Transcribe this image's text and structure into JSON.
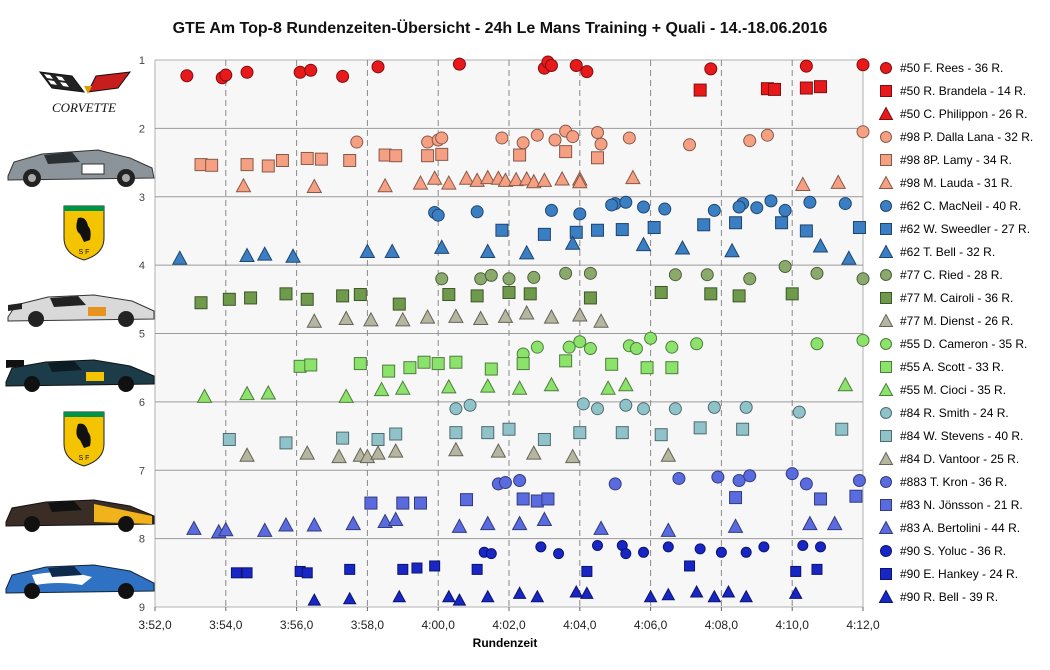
{
  "chart_data": {
    "type": "scatter",
    "title": "GTE Am  Top-8 Rundenzeiten-Übersicht  - 24h Le Mans  Training  + Quali  - 14.-18.06.2016",
    "xlabel": "Rundenzeit",
    "ylabel": "",
    "xlim": [
      "3:52,0",
      "4:12,0"
    ],
    "ylim": [
      1,
      9
    ],
    "x_ticks": [
      "3:52,0",
      "3:54,0",
      "3:56,0",
      "3:58,0",
      "4:00,0",
      "4:02,0",
      "4:04,0",
      "4:06,0",
      "4:08,0",
      "4:10,0",
      "4:12,0"
    ],
    "y_ticks": [
      "1",
      "2",
      "3",
      "4",
      "5",
      "6",
      "7",
      "8",
      "9"
    ],
    "grid": true,
    "legend_position": "right",
    "logo_text": "CORVETTE",
    "series": [
      {
        "name": "#50 F. Rees - 36 R.",
        "marker": "circle",
        "color": "#e8191b",
        "x": [
          "3:52,9",
          "3:53,9",
          "3:54,0",
          "3:54,6",
          "3:56,1",
          "3:56,4",
          "3:57,3",
          "3:58,3",
          "4:00,6",
          "4:03,0",
          "4:03,1",
          "4:03,2",
          "4:03,9",
          "4:04,2",
          "4:07,7",
          "4:10,4",
          "4:12,0"
        ],
        "y": [
          1.23,
          1.26,
          1.22,
          1.18,
          1.18,
          1.15,
          1.24,
          1.1,
          1.06,
          1.12,
          1.03,
          1.08,
          1.08,
          1.17,
          1.13,
          1.09,
          1.07
        ]
      },
      {
        "name": "#50 R. Brandela - 14 R.",
        "marker": "square",
        "color": "#e8191b",
        "x": [
          "4:07,4",
          "4:09,3",
          "4:09,5",
          "4:10,4",
          "4:10,8"
        ],
        "y": [
          1.44,
          1.42,
          1.43,
          1.41,
          1.39
        ]
      },
      {
        "name": "#50 C. Philippon - 26 R.",
        "marker": "triangle",
        "color": "#e8191b",
        "x": [],
        "y": []
      },
      {
        "name": "#98 P. Dalla Lana - 32 R.",
        "marker": "circle",
        "color": "#f6a083",
        "x": [
          "3:57,7",
          "3:59,7",
          "4:00,0",
          "4:00,1",
          "4:01,8",
          "4:02,4",
          "4:02,8",
          "4:03,3",
          "4:03,6",
          "4:03,8",
          "4:04,5",
          "4:04,6",
          "4:05,4",
          "4:07,1",
          "4:08,8",
          "4:09,3",
          "4:12,0"
        ],
        "y": [
          2.2,
          2.2,
          2.17,
          2.14,
          2.14,
          2.21,
          2.1,
          2.17,
          2.04,
          2.12,
          2.06,
          2.23,
          2.14,
          2.24,
          2.18,
          2.1,
          2.05
        ]
      },
      {
        "name": "#98 8P. Lamy - 34 R.",
        "marker": "square",
        "color": "#f6a083",
        "x": [
          "3:53,3",
          "3:53,6",
          "3:54,6",
          "3:55,2",
          "3:55,6",
          "3:56,3",
          "3:56,7",
          "3:57,5",
          "3:58,5",
          "3:58,8",
          "3:59,7",
          "4:00,1",
          "4:02,3",
          "4:03,6",
          "4:04,5"
        ],
        "y": [
          2.53,
          2.54,
          2.53,
          2.55,
          2.47,
          2.44,
          2.45,
          2.47,
          2.39,
          2.4,
          2.4,
          2.38,
          2.39,
          2.34,
          2.43
        ]
      },
      {
        "name": "#98 M. Lauda - 31 R.",
        "marker": "triangle",
        "color": "#f6a083",
        "x": [
          "3:54,5",
          "3:56,5",
          "3:58,5",
          "3:59,5",
          "3:59,9",
          "4:00,3",
          "4:00,8",
          "4:01,1",
          "4:01,4",
          "4:01,7",
          "4:01,9",
          "4:02,2",
          "4:02,5",
          "4:02,7",
          "4:03,0",
          "4:03,5",
          "4:04,0",
          "4:04,0",
          "4:05,5",
          "4:10,3",
          "4:11,3"
        ],
        "y": [
          2.84,
          2.85,
          2.84,
          2.8,
          2.73,
          2.8,
          2.73,
          2.76,
          2.72,
          2.73,
          2.76,
          2.75,
          2.74,
          2.78,
          2.76,
          2.74,
          2.74,
          2.78,
          2.72,
          2.82,
          2.79
        ]
      },
      {
        "name": "#62 C. MacNeil - 40 R.",
        "marker": "circle",
        "color": "#3a7ec4",
        "x": [
          "3:59,9",
          "4:00,0",
          "4:01,1",
          "4:05,0",
          "4:05,3",
          "4:05,8",
          "4:06,4",
          "4:08,6",
          "4:09,4",
          "4:09,8",
          "4:10,5",
          "4:11,5",
          "4:03,2",
          "4:04,0",
          "4:04,9",
          "4:07,8",
          "4:08,5",
          "4:09,0"
        ],
        "y": [
          3.23,
          3.27,
          3.22,
          3.1,
          3.08,
          3.15,
          3.18,
          3.1,
          3.06,
          3.2,
          3.08,
          3.1,
          3.2,
          3.25,
          3.12,
          3.2,
          3.15,
          3.16
        ]
      },
      {
        "name": "#62 W. Sweedler - 27 R.",
        "marker": "square",
        "color": "#3a7ec4",
        "x": [
          "4:01,8",
          "4:03,0",
          "4:03,9",
          "4:04,5",
          "4:05,2",
          "4:06,1",
          "4:07,5",
          "4:08,4",
          "4:09,7",
          "4:10,4",
          "4:11,9"
        ],
        "y": [
          3.49,
          3.55,
          3.52,
          3.49,
          3.48,
          3.45,
          3.41,
          3.38,
          3.38,
          3.5,
          3.45
        ]
      },
      {
        "name": "#62 T. Bell - 32 R.",
        "marker": "triangle",
        "color": "#3a7ec4",
        "x": [
          "3:52,7",
          "3:54,6",
          "3:55,1",
          "3:55,9",
          "3:58,0",
          "3:58,7",
          "4:00,1",
          "4:01,4",
          "4:02,5",
          "4:03,8",
          "4:05,8",
          "4:06,9",
          "4:08,3",
          "4:10,8",
          "4:11,6"
        ],
        "y": [
          3.9,
          3.86,
          3.84,
          3.87,
          3.8,
          3.8,
          3.74,
          3.8,
          3.82,
          3.68,
          3.7,
          3.75,
          3.79,
          3.72,
          3.9
        ]
      },
      {
        "name": "#77 C. Ried - 28 R.",
        "marker": "circle",
        "color": "#8aaa6c",
        "x": [
          "4:00,1",
          "4:01,2",
          "4:01,5",
          "4:02,0",
          "4:02,7",
          "4:03,6",
          "4:04,3",
          "4:06,7",
          "4:07,6",
          "4:08,8",
          "4:09,8",
          "4:10,7",
          "4:12,0"
        ],
        "y": [
          4.2,
          4.2,
          4.15,
          4.2,
          4.18,
          4.12,
          4.12,
          4.14,
          4.14,
          4.2,
          4.02,
          4.12,
          4.2
        ]
      },
      {
        "name": "#77 M. Cairoli - 36 R.",
        "marker": "square",
        "color": "#6f9a4b",
        "x": [
          "3:53,3",
          "3:54,1",
          "3:54,7",
          "3:55,7",
          "3:56,3",
          "3:57,3",
          "3:57,8",
          "3:58,9",
          "4:00,3",
          "4:01,1",
          "4:02,0",
          "4:02,6",
          "4:04,3",
          "4:06,3",
          "4:07,7",
          "4:08,5",
          "4:10,0"
        ],
        "y": [
          4.55,
          4.5,
          4.48,
          4.42,
          4.5,
          4.45,
          4.43,
          4.57,
          4.43,
          4.45,
          4.4,
          4.42,
          4.48,
          4.4,
          4.42,
          4.45,
          4.42
        ]
      },
      {
        "name": "#77 M. Dienst - 26 R.",
        "marker": "triangle",
        "color": "#b5b5a0",
        "x": [
          "3:56,5",
          "3:57,4",
          "3:58,1",
          "3:59,0",
          "3:59,7",
          "4:00,5",
          "4:01,2",
          "4:01,9",
          "4:02,5",
          "4:03,2",
          "4:04,0",
          "4:04,6"
        ],
        "y": [
          4.82,
          4.78,
          4.8,
          4.8,
          4.76,
          4.75,
          4.78,
          4.75,
          4.7,
          4.76,
          4.73,
          4.82
        ]
      },
      {
        "name": "#55 D. Cameron - 35 R.",
        "marker": "circle",
        "color": "#8ce36b",
        "x": [
          "4:02,8",
          "4:04,0",
          "4:04,3",
          "4:05,4",
          "4:05,6",
          "4:06,0",
          "4:06,6",
          "4:07,3",
          "4:10,7",
          "4:12,0",
          "4:02,4",
          "4:03,7"
        ],
        "y": [
          5.2,
          5.12,
          5.22,
          5.18,
          5.22,
          5.07,
          5.2,
          5.15,
          5.15,
          5.1,
          5.3,
          5.2
        ]
      },
      {
        "name": "#55 A. Scott - 33 R.",
        "marker": "square",
        "color": "#8ce36b",
        "x": [
          "3:56,1",
          "3:56,4",
          "3:57,8",
          "3:58,6",
          "3:59,2",
          "3:59,6",
          "4:00,0",
          "4:00,5",
          "4:01,5",
          "4:02,4",
          "4:03,6",
          "4:04,9",
          "4:05,9",
          "4:06,6"
        ],
        "y": [
          5.48,
          5.46,
          5.44,
          5.55,
          5.5,
          5.42,
          5.44,
          5.42,
          5.52,
          5.44,
          5.4,
          5.45,
          5.5,
          5.5
        ]
      },
      {
        "name": "#55 M. Cioci - 35 R.",
        "marker": "triangle",
        "color": "#8ce36b",
        "x": [
          "3:53,4",
          "3:54,6",
          "3:55,2",
          "3:57,4",
          "3:58,4",
          "3:59,0",
          "4:00,3",
          "4:01,4",
          "4:02,3",
          "4:03,2",
          "4:04,8",
          "4:05,3",
          "4:11,5"
        ],
        "y": [
          5.92,
          5.88,
          5.87,
          5.92,
          5.82,
          5.8,
          5.78,
          5.77,
          5.8,
          5.75,
          5.8,
          5.75,
          5.75
        ]
      },
      {
        "name": "#84 R. Smith - 24 R.",
        "marker": "circle",
        "color": "#8fc3c9",
        "x": [
          "4:00,5",
          "4:00,9",
          "4:04,1",
          "4:04,5",
          "4:05,3",
          "4:05,8",
          "4:06,7",
          "4:07,8",
          "4:08,7",
          "4:10,2"
        ],
        "y": [
          6.1,
          6.05,
          6.03,
          6.1,
          6.05,
          6.1,
          6.1,
          6.08,
          6.08,
          6.15
        ]
      },
      {
        "name": "#84 W. Stevens - 40 R.",
        "marker": "square",
        "color": "#8fc3c9",
        "x": [
          "3:54,1",
          "3:55,7",
          "3:57,3",
          "3:58,3",
          "3:58,8",
          "4:00,5",
          "4:01,4",
          "4:02,0",
          "4:03,0",
          "4:04,0",
          "4:05,2",
          "4:06,3",
          "4:07,4",
          "4:08,6",
          "4:11,4"
        ],
        "y": [
          6.55,
          6.6,
          6.53,
          6.55,
          6.47,
          6.45,
          6.45,
          6.4,
          6.55,
          6.45,
          6.45,
          6.48,
          6.38,
          6.4,
          6.4
        ]
      },
      {
        "name": "#84 D. Vantoor - 25 R.",
        "marker": "triangle",
        "color": "#b5b5a0",
        "x": [
          "3:54,6",
          "3:56,3",
          "3:57,2",
          "3:57,8",
          "3:58,0",
          "3:58,3",
          "3:58,8",
          "4:00,5",
          "4:01,7",
          "4:02,7",
          "4:03,8",
          "4:06,5"
        ],
        "y": [
          6.78,
          6.75,
          6.8,
          6.78,
          6.8,
          6.75,
          6.72,
          6.7,
          6.72,
          6.75,
          6.8,
          6.78
        ]
      },
      {
        "name": "#883 T. Kron - 36 R.",
        "marker": "circle",
        "color": "#5a6be0",
        "x": [
          "4:01,7",
          "4:01,9",
          "4:02,3",
          "4:05,0",
          "4:06,8",
          "4:07,9",
          "4:08,5",
          "4:08,8",
          "4:10,0",
          "4:10,4",
          "4:11,9"
        ],
        "y": [
          7.2,
          7.18,
          7.15,
          7.2,
          7.12,
          7.1,
          7.15,
          7.08,
          7.05,
          7.2,
          7.15
        ]
      },
      {
        "name": "#83 N. Jönsson - 21 R.",
        "marker": "square",
        "color": "#5a6be0",
        "x": [
          "3:58,1",
          "3:59,0",
          "3:59,5",
          "4:00,8",
          "4:02,4",
          "4:02,8",
          "4:03,1",
          "4:08,4",
          "4:10,8",
          "4:11,8"
        ],
        "y": [
          7.48,
          7.48,
          7.48,
          7.43,
          7.42,
          7.45,
          7.42,
          7.4,
          7.42,
          7.38
        ]
      },
      {
        "name": "#83 A. Bertolini - 44 R.",
        "marker": "triangle",
        "color": "#5a6be0",
        "x": [
          "3:53,1",
          "3:53,8",
          "3:54,0",
          "3:55,1",
          "3:55,7",
          "3:56,5",
          "3:57,6",
          "3:58,5",
          "3:58,8",
          "4:00,6",
          "4:01,4",
          "4:02,3",
          "4:03,0",
          "4:04,6",
          "4:06,5",
          "4:08,4",
          "4:10,5",
          "4:11,2"
        ],
        "y": [
          7.85,
          7.9,
          7.87,
          7.88,
          7.8,
          7.8,
          7.78,
          7.75,
          7.72,
          7.82,
          7.78,
          7.78,
          7.72,
          7.85,
          7.88,
          7.82,
          7.78,
          7.78
        ]
      },
      {
        "name": "#90 S. Yoluc - 36 R.",
        "marker": "circle",
        "color": "#1726c4",
        "x": [
          "4:01,3",
          "4:01,5",
          "4:02,9",
          "4:03,4",
          "4:04,5",
          "4:05,2",
          "4:05,8",
          "4:06,5",
          "4:07,4",
          "4:08,0",
          "4:08,7",
          "4:09,2",
          "4:10,3",
          "4:10,8",
          "4:05,3"
        ],
        "y": [
          8.2,
          8.22,
          8.12,
          8.22,
          8.1,
          8.1,
          8.2,
          8.12,
          8.15,
          8.2,
          8.2,
          8.12,
          8.1,
          8.12,
          8.22
        ]
      },
      {
        "name": "#90 E. Hankey - 24 R.",
        "marker": "square",
        "color": "#1726c4",
        "x": [
          "3:54,3",
          "3:54,6",
          "3:56,1",
          "3:56,3",
          "3:57,5",
          "3:59,0",
          "3:59,4",
          "3:59,9",
          "4:01,1",
          "4:04,2",
          "4:07,1",
          "4:10,1",
          "4:10,7"
        ],
        "y": [
          8.5,
          8.5,
          8.48,
          8.5,
          8.45,
          8.45,
          8.43,
          8.4,
          8.45,
          8.48,
          8.4,
          8.48,
          8.45
        ]
      },
      {
        "name": "#90 R. Bell - 39 R.",
        "marker": "triangle",
        "color": "#1726c4",
        "x": [
          "3:56,5",
          "3:57,5",
          "3:58,9",
          "4:00,3",
          "4:00,6",
          "4:01,4",
          "4:02,3",
          "4:02,8",
          "4:03,9",
          "4:04,2",
          "4:06,0",
          "4:06,5",
          "4:07,3",
          "4:07,8",
          "4:08,2",
          "4:08,7",
          "4:10,1"
        ],
        "y": [
          8.9,
          8.88,
          8.85,
          8.85,
          8.9,
          8.85,
          8.8,
          8.85,
          8.78,
          8.8,
          8.85,
          8.82,
          8.78,
          8.85,
          8.78,
          8.85,
          8.8
        ]
      }
    ]
  }
}
